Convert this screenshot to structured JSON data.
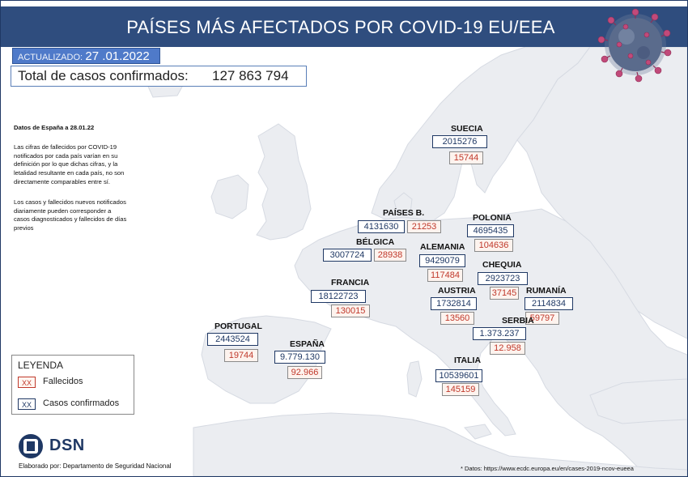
{
  "title": "PAÍSES MÁS AFECTADOS POR COVID-19 EU/EEA",
  "updated": {
    "label": "ACTUALIZADO:",
    "date": "27 .01.2022"
  },
  "total": {
    "label": "Total de casos confirmados:",
    "value": "127 863 794"
  },
  "notes": {
    "heading": "Datos de España a 28.01.22",
    "paragraph1": "Las cifras de fallecidos por COVID-19 notificados por cada país varían en su definición por lo que dichas cifras, y la letalidad resultante en cada país, no son directamente comparables entre sí.",
    "paragraph2": "Los casos y fallecidos nuevos notificados diariamente pueden corresponder a casos diagnosticados y fallecidos de días previos"
  },
  "legend": {
    "title": "LEYENDA",
    "box_text": "XX",
    "deaths_label": "Fallecidos",
    "cases_label": "Casos confirmados"
  },
  "countries": {
    "suecia": {
      "name": "SUECIA",
      "cases": "2015276",
      "deaths": "15744"
    },
    "paises_bajos": {
      "name": "PAÍSES B.",
      "cases": "4131630",
      "deaths": "21253"
    },
    "polonia": {
      "name": "POLONIA",
      "cases": "4695435",
      "deaths": "104636"
    },
    "belgica": {
      "name": "BÉLGICA",
      "cases": "3007724",
      "deaths": "28938"
    },
    "alemania": {
      "name": "ALEMANIA",
      "cases": "9429079",
      "deaths": "117484"
    },
    "chequia": {
      "name": "CHEQUIA",
      "cases": "2923723",
      "deaths": "37145"
    },
    "francia": {
      "name": "FRANCIA",
      "cases": "18122723",
      "deaths": "130015"
    },
    "austria": {
      "name": "AUSTRIA",
      "cases": "1732814",
      "deaths": "13560"
    },
    "rumania": {
      "name": "RUMANÍA",
      "cases": "2114834",
      "deaths": "59797"
    },
    "serbia": {
      "name": "SERBIA",
      "cases": "1.373.237",
      "deaths": "12.958"
    },
    "portugal": {
      "name": "PORTUGAL",
      "cases": "2443524",
      "deaths": "19744"
    },
    "espana": {
      "name": "ESPAÑA",
      "cases": "9.779.130",
      "deaths": "92.966"
    },
    "italia": {
      "name": "ITALIA",
      "cases": "10539601",
      "deaths": "145159"
    }
  },
  "footer": {
    "logo_text": "DSN",
    "elaborado": "Elaborado por: Departamento de Seguridad Nacional",
    "source": "* Datos: https://www.ecdc.europa.eu/en/cases-2019-ncov-eueea"
  },
  "colors": {
    "header": "#2f4d7e",
    "sea": "#ffffff",
    "land": "#ebedf1",
    "deaths_text": "#c0392b",
    "cases_text": "#1f3864"
  }
}
